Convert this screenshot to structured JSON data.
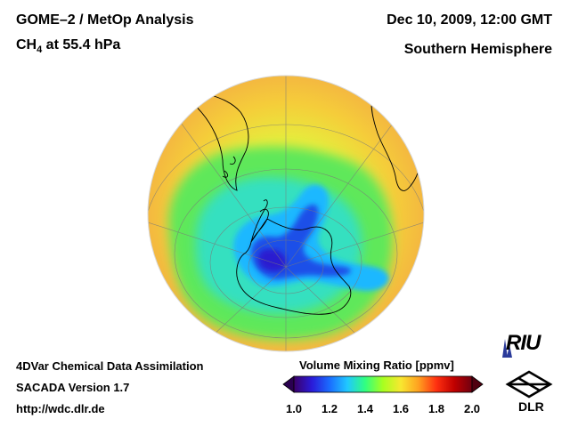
{
  "header": {
    "instrument": "GOME–2 / MetOp Analysis",
    "species_prefix": "CH",
    "species_sub": "4",
    "species_suffix": " at 55.4 hPa",
    "datetime": "Dec 10, 2009, 12:00 GMT",
    "hemisphere": "Southern Hemisphere"
  },
  "footer": {
    "line1": "4DVar Chemical Data Assimilation",
    "line2": "SACADA Version 1.7",
    "line3": "http://wdc.dlr.de"
  },
  "colorbar": {
    "title": "Volume Mixing Ratio [ppmv]",
    "min": 1.0,
    "max": 2.0,
    "ticks": [
      "1.0",
      "1.2",
      "1.4",
      "1.6",
      "1.8",
      "2.0"
    ],
    "colors": [
      "#3b0068",
      "#2a1ad8",
      "#1a6cff",
      "#20c8ff",
      "#30ff80",
      "#a8ff20",
      "#f8e830",
      "#ffa020",
      "#ff3010",
      "#c00000",
      "#700010"
    ]
  },
  "logos": {
    "riu": "RIU",
    "dlr": "DLR"
  },
  "map_colors": {
    "background_field": "#f2c63c",
    "outline": "#000000",
    "grid": "#7a7a7a"
  }
}
